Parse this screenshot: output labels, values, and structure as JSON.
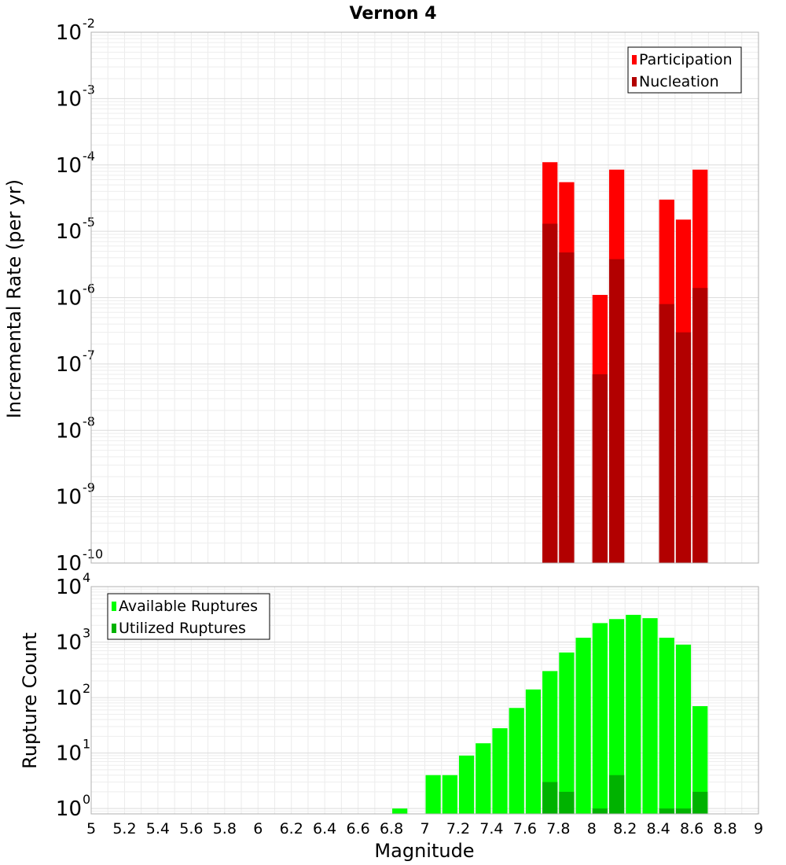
{
  "chart_data": [
    {
      "type": "bar",
      "title": "Vernon 4",
      "ylabel": "Incremental Rate (per yr)",
      "xlabel": "",
      "xlim": [
        5,
        9
      ],
      "ylim": [
        1e-10,
        0.01
      ],
      "yscale": "log",
      "grid": true,
      "legend_position": "top-right",
      "y_tick_labels": [
        {
          "value": 1e-10,
          "base": "10",
          "exp": "-10"
        },
        {
          "value": 1e-09,
          "base": "10",
          "exp": "-9"
        },
        {
          "value": 1e-08,
          "base": "10",
          "exp": "-8"
        },
        {
          "value": 1e-07,
          "base": "10",
          "exp": "-7"
        },
        {
          "value": 1e-06,
          "base": "10",
          "exp": "-6"
        },
        {
          "value": 1e-05,
          "base": "10",
          "exp": "-5"
        },
        {
          "value": 0.0001,
          "base": "10",
          "exp": "-4"
        },
        {
          "value": 0.001,
          "base": "10",
          "exp": "-3"
        },
        {
          "value": 0.01,
          "base": "10",
          "exp": "-2"
        }
      ],
      "x": [
        7.75,
        7.85,
        8.05,
        8.15,
        8.45,
        8.55,
        8.65
      ],
      "series": [
        {
          "name": "Participation",
          "color": "#ff0000",
          "values": [
            0.00011,
            5.5e-05,
            1.1e-06,
            8.5e-05,
            3e-05,
            1.5e-05,
            8.5e-05
          ]
        },
        {
          "name": "Nucleation",
          "color": "#b20000",
          "values": [
            1.3e-05,
            4.8e-06,
            7e-08,
            3.8e-06,
            8e-07,
            3e-07,
            1.4e-06
          ]
        }
      ]
    },
    {
      "type": "bar",
      "title": "",
      "ylabel": "Rupture Count",
      "xlabel": "Magnitude",
      "xlim": [
        5,
        9
      ],
      "ylim": [
        0.8,
        10000.0
      ],
      "yscale": "log",
      "grid": true,
      "legend_position": "top-left",
      "y_tick_labels": [
        {
          "value": 1,
          "base": "10",
          "exp": "0"
        },
        {
          "value": 10,
          "base": "10",
          "exp": "1"
        },
        {
          "value": 100,
          "base": "10",
          "exp": "2"
        },
        {
          "value": 1000,
          "base": "10",
          "exp": "3"
        },
        {
          "value": 10000,
          "base": "10",
          "exp": "4"
        }
      ],
      "x_tick_labels": [
        "5",
        "5.2",
        "5.4",
        "5.6",
        "5.8",
        "6",
        "6.2",
        "6.4",
        "6.6",
        "6.8",
        "7",
        "7.2",
        "7.4",
        "7.6",
        "7.8",
        "8",
        "8.2",
        "8.4",
        "8.6",
        "8.8",
        "9"
      ],
      "x_ticks": [
        5,
        5.2,
        5.4,
        5.6,
        5.8,
        6,
        6.2,
        6.4,
        6.6,
        6.8,
        7,
        7.2,
        7.4,
        7.6,
        7.8,
        8,
        8.2,
        8.4,
        8.6,
        8.8,
        9
      ],
      "x": [
        6.85,
        7.05,
        7.15,
        7.25,
        7.35,
        7.45,
        7.55,
        7.65,
        7.75,
        7.85,
        7.95,
        8.05,
        8.15,
        8.25,
        8.35,
        8.45,
        8.55,
        8.65
      ],
      "series": [
        {
          "name": "Available Ruptures",
          "color": "#00ff00",
          "values": [
            1,
            4,
            4,
            9,
            15,
            28,
            65,
            140,
            300,
            650,
            1200,
            2200,
            2600,
            3100,
            2700,
            1200,
            900,
            70
          ]
        },
        {
          "name": "Utilized Ruptures",
          "color": "#00b200",
          "values": [
            0,
            0,
            0,
            0,
            0,
            0,
            0,
            0,
            3,
            2,
            0,
            1,
            4,
            0,
            0,
            1,
            1,
            2
          ]
        }
      ]
    }
  ]
}
